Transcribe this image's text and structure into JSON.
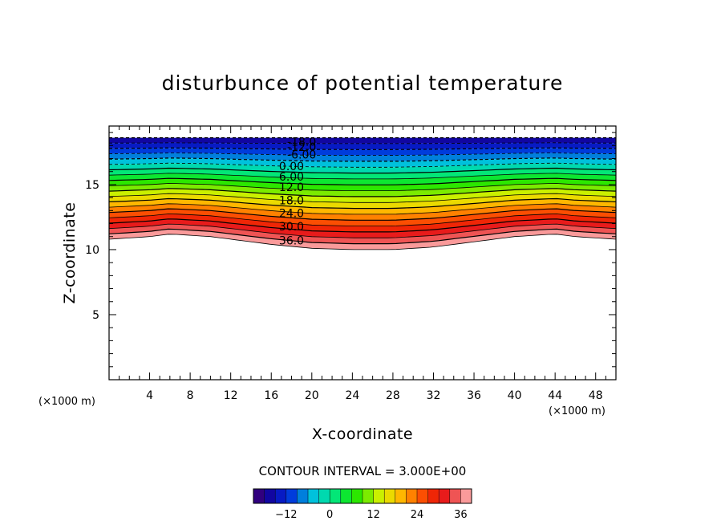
{
  "chart_data": {
    "type": "contour",
    "title": "disturbunce of potential temperature",
    "xlabel": "X-coordinate",
    "ylabel": "Z-coordinate",
    "x_unit": "(×1000 m)",
    "z_unit": "(×1000 m)",
    "xlim": [
      0,
      50
    ],
    "zlim": [
      0,
      19.5
    ],
    "x_ticks": [
      4,
      8,
      12,
      16,
      20,
      24,
      28,
      32,
      36,
      40,
      44,
      48
    ],
    "z_ticks": [
      5,
      10,
      15
    ],
    "contour_interval_text": "CONTOUR INTERVAL = 3.000E+00",
    "contour_interval": 3.0,
    "contour_levels_min": -18,
    "contour_levels_max": 39,
    "contour_labels": [
      {
        "text": "-18.0",
        "level": -18,
        "x": 19,
        "z": 18.3
      },
      {
        "text": "-12.0",
        "level": -12,
        "x": 19,
        "z": 17.9
      },
      {
        "text": "-6.00",
        "level": -6,
        "x": 19,
        "z": 17.3
      },
      {
        "text": "0.00",
        "level": 0,
        "x": 18,
        "z": 16.4
      },
      {
        "text": "6.00",
        "level": 6,
        "x": 18,
        "z": 15.6
      },
      {
        "text": "12.0",
        "level": 12,
        "x": 18,
        "z": 14.8
      },
      {
        "text": "18.0",
        "level": 18,
        "x": 18,
        "z": 13.8
      },
      {
        "text": "24.0",
        "level": 24,
        "x": 18,
        "z": 12.8
      },
      {
        "text": "30.0",
        "level": 30,
        "x": 18,
        "z": 11.8
      },
      {
        "text": "36.0",
        "level": 36,
        "x": 18,
        "z": 10.7
      }
    ],
    "top_boundary_z": 18.6,
    "bottom_boundary_profile": {
      "x": [
        0,
        4,
        6,
        10,
        16,
        20,
        24,
        28,
        32,
        36,
        40,
        44,
        46,
        50
      ],
      "z": [
        10.8,
        11.0,
        11.2,
        11.0,
        10.4,
        10.1,
        10.0,
        10.0,
        10.2,
        10.6,
        11.0,
        11.2,
        11.0,
        10.8
      ]
    },
    "colorbar": {
      "min": -21,
      "max": 39,
      "ticks": [
        -12,
        0,
        12,
        24,
        36
      ],
      "tick_labels": [
        "−12",
        "0",
        "12",
        "24",
        "36"
      ]
    }
  }
}
